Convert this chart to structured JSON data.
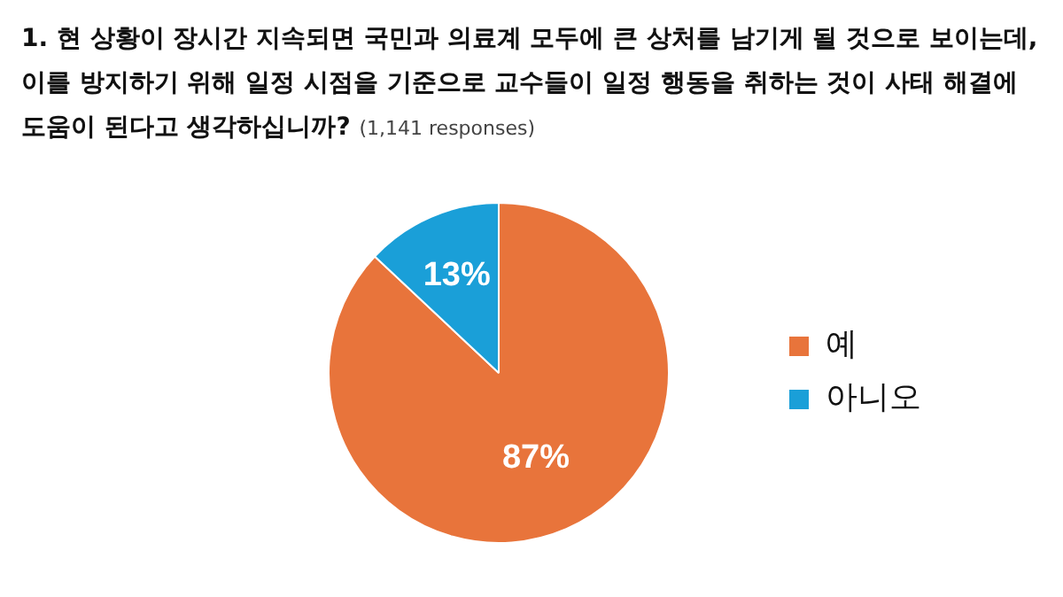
{
  "chart_data": {
    "type": "pie",
    "title": "1. 현 상황이 장시간 지속되면 국민과 의료계 모두에 큰 상처를 남기게 될 것으로 보이는데, 이를 방지하기 위해 일정 시점을 기준으로 교수들이 일정 행동을 취하는 것이 사태 해결에 도움이 된다고 생각하십니까?",
    "subtitle": "(1,141 responses)",
    "categories": [
      "예",
      "아니오"
    ],
    "values": [
      87,
      13
    ],
    "colors": [
      "#e8743b",
      "#1a9fd8"
    ],
    "value_labels": [
      "87%",
      "13%"
    ],
    "legend": "right"
  }
}
